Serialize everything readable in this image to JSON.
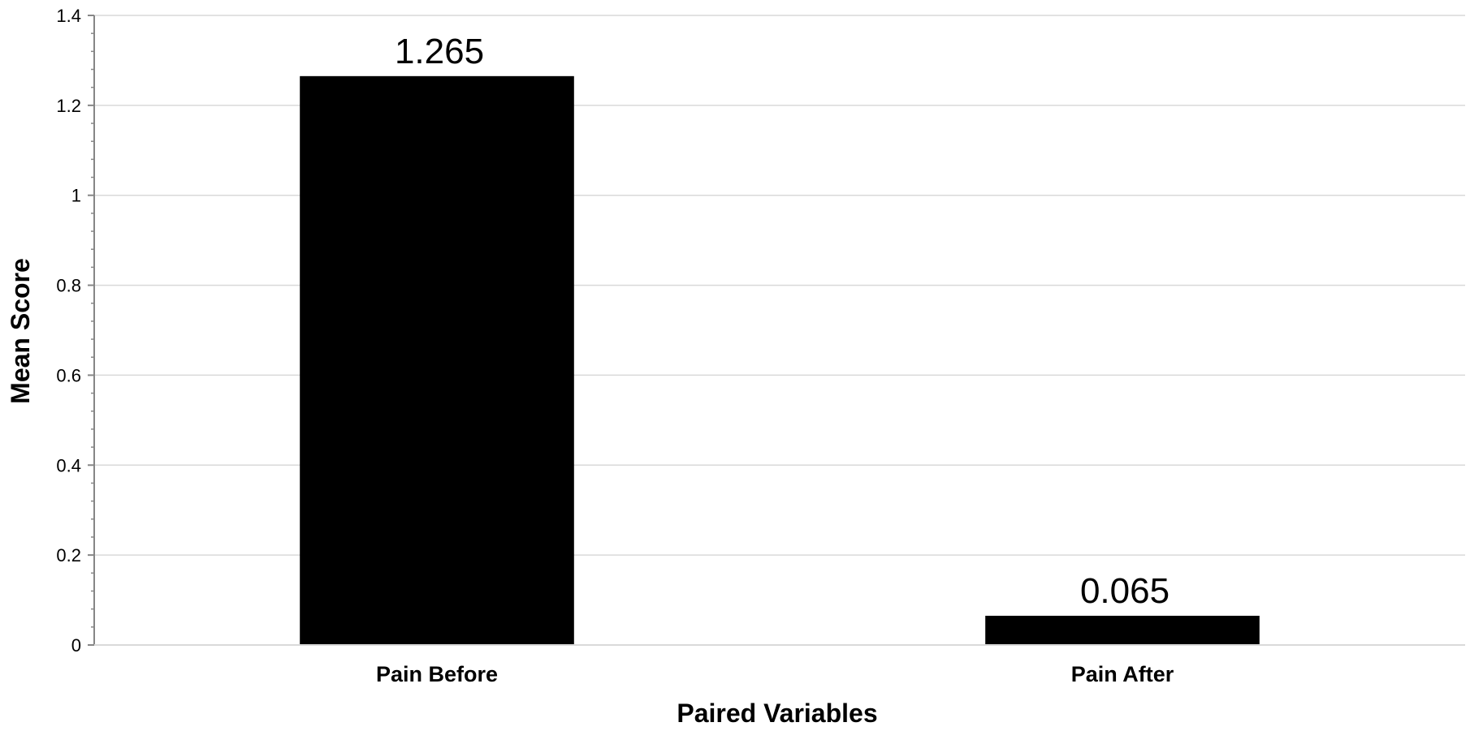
{
  "chart_data": {
    "type": "bar",
    "title": "",
    "xlabel": "Paired Variables",
    "ylabel": "Mean Score",
    "categories": [
      "Pain Before",
      "Pain After"
    ],
    "values": [
      1.265,
      0.065
    ],
    "data_labels": [
      "1.265",
      "0.065"
    ],
    "ylim": [
      0,
      1.4
    ],
    "yticks": [
      0,
      0.2,
      0.4,
      0.6,
      0.8,
      1,
      1.2,
      1.4
    ],
    "ytick_labels": [
      "0",
      "0.2",
      "0.4",
      "0.6",
      "0.8",
      "1",
      "1.2",
      "1.4"
    ],
    "grid": true,
    "legend": "none",
    "colors": {
      "bar": "#000000",
      "grid": "#d9d9d9",
      "axis": "#868686",
      "text": "#000000"
    }
  }
}
